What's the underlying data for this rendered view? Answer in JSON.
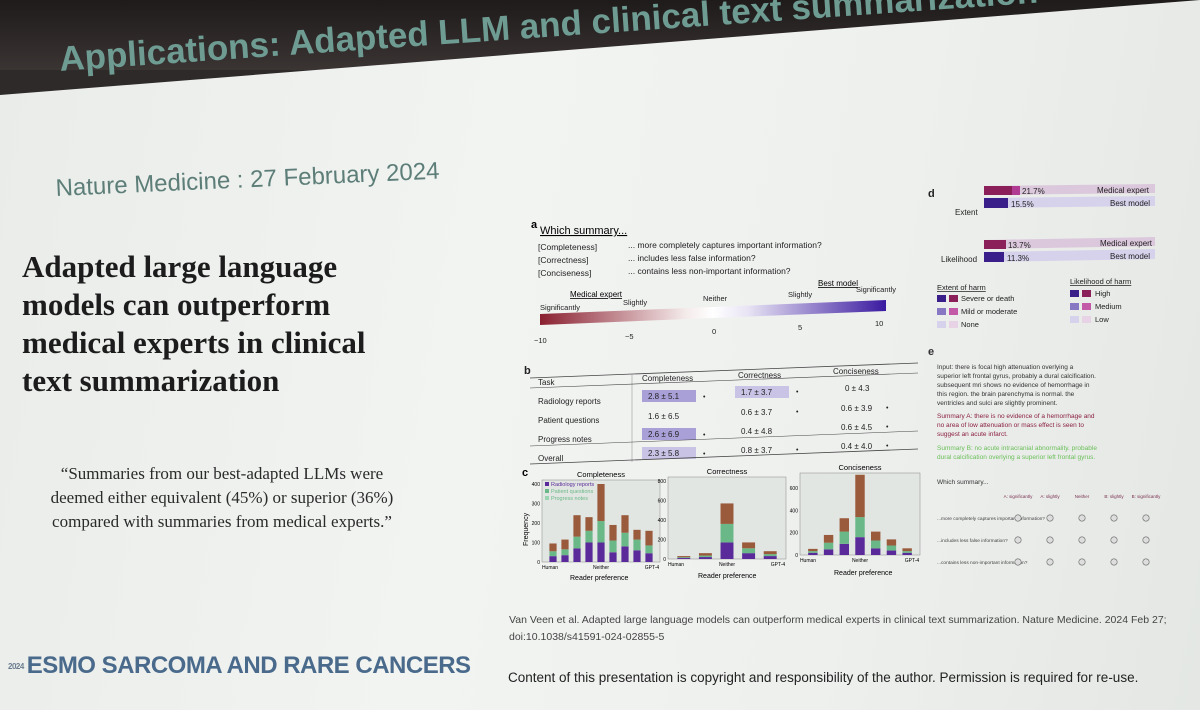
{
  "slide": {
    "title": "Applications: Adapted LLM and clinical text summarization",
    "subtitle": "Nature Medicine : 27 February 2024",
    "headline_lines": [
      "Adapted large language",
      "models can outperform",
      "medical experts in clinical",
      "text summarization"
    ],
    "quote_lines": [
      "“Summaries from our best-adapted LLMs were",
      "deemed either equivalent (45%) or superior (36%)",
      "compared with summaries from medical experts.”"
    ],
    "citation_lines": [
      "Van Veen  et al. Adapted large language models can outperform medical experts in clinical text summarization. Nature Medicine. 2024 Feb 27;",
      "doi:10.1038/s41591-024-02855-5"
    ],
    "footer_year": "2024",
    "footer_logo": "ESMO SARCOMA AND RARE CANCERS",
    "copyright": "Content of this presentation is copyright and responsibility of the author. Permission is required for re-use."
  },
  "figure": {
    "panel_a": {
      "letter": "a",
      "question": "Which summary...",
      "criteria": [
        {
          "label": "[Completeness]",
          "text": "... more completely captures important information?"
        },
        {
          "label": "[Correctness]",
          "text": "... includes less false information?"
        },
        {
          "label": "[Conciseness]",
          "text": "... contains less non-important information?"
        }
      ],
      "scale_group_labels": [
        "Medical expert",
        "Best model"
      ],
      "scale_labels": [
        "Significantly",
        "Slightly",
        "Neither",
        "Slightly",
        "Significantly"
      ],
      "scale_ticks": [
        "−10",
        "−5",
        "0",
        "5",
        "10"
      ]
    },
    "panel_b": {
      "letter": "b",
      "headers": [
        "Task",
        "Completeness",
        "Correctness",
        "Conciseness"
      ],
      "rows": [
        {
          "task": "Radiology reports",
          "completeness": "2.8 ± 5.1",
          "correctness": "1.7 ± 3.7",
          "conciseness": "0 ± 4.3"
        },
        {
          "task": "Patient questions",
          "completeness": "1.6 ± 6.5",
          "correctness": "0.6 ± 3.7",
          "conciseness": "0.6 ± 3.9"
        },
        {
          "task": "Progress notes",
          "completeness": "2.6 ± 6.9",
          "correctness": "0.4 ± 4.8",
          "conciseness": "0.6 ± 4.5"
        },
        {
          "task": "Overall",
          "completeness": "2.3 ± 5.8",
          "correctness": "0.8 ± 3.7",
          "conciseness": "0.4 ± 4.0"
        }
      ]
    },
    "panel_c": {
      "letter": "c",
      "ylabel": "Frequency",
      "xlabel": "Reader preference",
      "legend": [
        "Radiology reports",
        "Patient questions",
        "Progress notes"
      ],
      "x_ticks": [
        "Human",
        "Neither",
        "GPT-4"
      ],
      "series_colors": [
        "#5b2a9a",
        "#6ab888",
        "#9a5a3c"
      ],
      "subplots": [
        {
          "title": "Completeness",
          "y_ticks": [
            "0",
            "100",
            "200",
            "300",
            "400"
          ],
          "ymax": 400,
          "bars": [
            [
              30,
              25,
              40
            ],
            [
              35,
              30,
              50
            ],
            [
              70,
              60,
              110
            ],
            [
              100,
              60,
              70
            ],
            [
              100,
              110,
              190
            ],
            [
              50,
              60,
              80
            ],
            [
              80,
              70,
              90
            ],
            [
              60,
              55,
              50
            ],
            [
              45,
              40,
              75
            ]
          ]
        },
        {
          "title": "Correctness",
          "y_ticks": [
            "0",
            "200",
            "400",
            "600",
            "800"
          ],
          "ymax": 800,
          "bars": [
            [
              10,
              8,
              12
            ],
            [
              20,
              15,
              25
            ],
            [
              170,
              190,
              210
            ],
            [
              60,
              50,
              60
            ],
            [
              30,
              20,
              30
            ]
          ]
        },
        {
          "title": "Conciseness",
          "y_ticks": [
            "0",
            "200",
            "400",
            "600"
          ],
          "ymax": 700,
          "bars": [
            [
              20,
              15,
              20
            ],
            [
              50,
              60,
              70
            ],
            [
              100,
              110,
              120
            ],
            [
              160,
              180,
              380
            ],
            [
              60,
              70,
              80
            ],
            [
              40,
              45,
              55
            ],
            [
              20,
              15,
              25
            ]
          ]
        }
      ]
    },
    "panel_d": {
      "letter": "d",
      "groups": [
        {
          "label": "Extent",
          "bars": [
            {
              "pct": "21.7%",
              "name": "Medical expert"
            },
            {
              "pct": "15.5%",
              "name": "Best model"
            }
          ]
        },
        {
          "label": "Likelihood",
          "bars": [
            {
              "pct": "13.7%",
              "name": "Medical expert"
            },
            {
              "pct": "11.3%",
              "name": "Best model"
            }
          ]
        }
      ],
      "legend_extent_title": "Extent of harm",
      "legend_extent": [
        "Severe or death",
        "Mild or moderate",
        "None"
      ],
      "legend_likelihood_title": "Likelihood of harm",
      "legend_likelihood": [
        "High",
        "Medium",
        "Low"
      ]
    },
    "panel_e": {
      "letter": "e",
      "input_lines": [
        "Input: there is focal high attenuation overlying a",
        "superior left frontal gyrus, probably a dural calcification.",
        "subsequent mri shows no evidence of hemorrhage in",
        "this region. the brain parenchyma is normal. the",
        "ventricles and sulci are slightly prominent."
      ],
      "summary_a_lines": [
        "Summary A: there is no evidence of a hemorrhage and",
        "no area of low attenuation or mass effect is seen to",
        "suggest an acute infarct."
      ],
      "summary_b_lines": [
        "Summary B: no acute intracranial abnormality. probable",
        "dural calcification overlying a superior left frontal gyrus."
      ],
      "survey_title": "Which summary...",
      "survey_cols": [
        "A: significantly",
        "A: slightly",
        "Neither",
        "B: slightly",
        "B: significantly"
      ],
      "survey_rows": [
        "...more completely captures important information?",
        "...includes less false information?",
        "...contains less non-important information?"
      ]
    }
  }
}
